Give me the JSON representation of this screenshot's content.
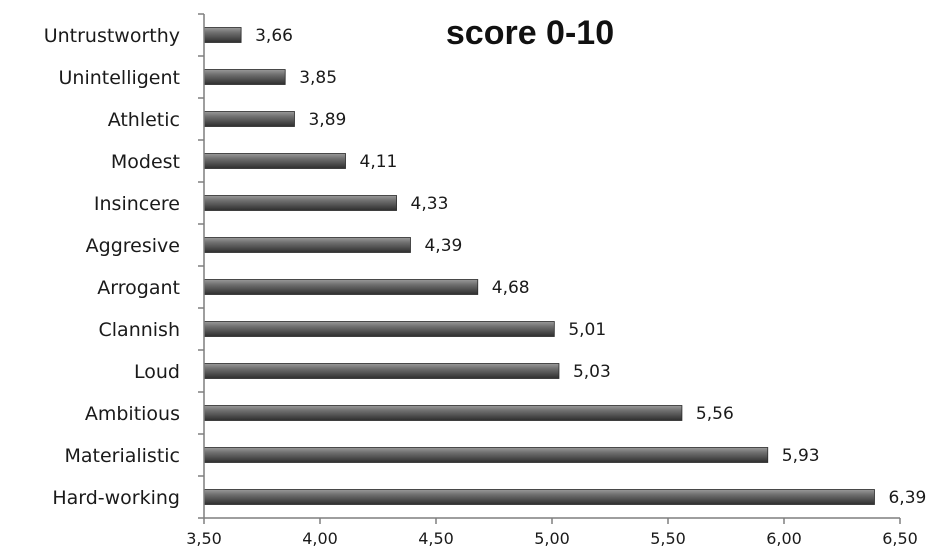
{
  "chart_data": {
    "type": "bar",
    "orientation": "horizontal",
    "title": "score 0-10",
    "xlabel": "",
    "ylabel": "",
    "categories": [
      "Untrustworthy",
      "Unintelligent",
      "Athletic",
      "Modest",
      "Insincere",
      "Aggresive",
      "Arrogant",
      "Clannish",
      "Loud",
      "Ambitious",
      "Materialistic",
      "Hard-working"
    ],
    "values": [
      3.66,
      3.85,
      3.89,
      4.11,
      4.33,
      4.39,
      4.68,
      5.01,
      5.03,
      5.56,
      5.93,
      6.39
    ],
    "value_labels": [
      "3,66",
      "3,85",
      "3,89",
      "4,11",
      "4,33",
      "4,39",
      "4,68",
      "5,01",
      "5,03",
      "5,56",
      "5,93",
      "6,39"
    ],
    "xlim": [
      3.5,
      6.5
    ],
    "ticks": [
      3.5,
      4.0,
      4.5,
      5.0,
      5.5,
      6.0,
      6.5
    ],
    "tick_labels": [
      "3,50",
      "4,00",
      "4,50",
      "5,00",
      "5,50",
      "6,00",
      "6,50"
    ],
    "grid": false,
    "legend": "none",
    "bar_color": "#5a5a5a"
  }
}
